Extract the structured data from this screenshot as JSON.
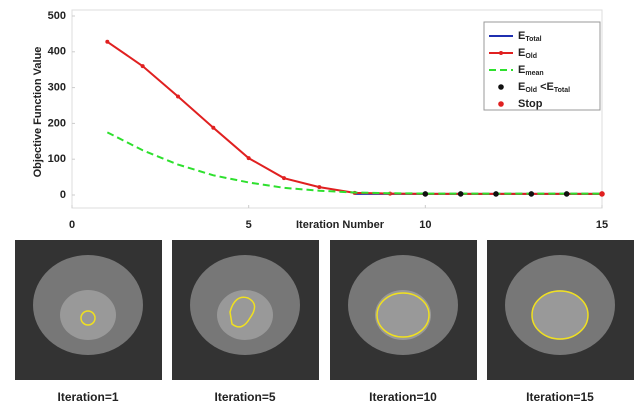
{
  "chart_data": {
    "type": "line",
    "x_label": "Iteration Number",
    "y_label": "Objective Function Value",
    "x": [
      1,
      2,
      3,
      4,
      5,
      6,
      7,
      8,
      9,
      10,
      11,
      12,
      13,
      14,
      15
    ],
    "series": [
      {
        "name": [
          "E",
          "Total"
        ],
        "color": "#1f2fb0",
        "style": "solid",
        "values": [
          null,
          null,
          null,
          null,
          null,
          null,
          null,
          3,
          3,
          3,
          3,
          3,
          3,
          3,
          3
        ]
      },
      {
        "name": [
          "E",
          "Old"
        ],
        "color": "#e02020",
        "style": "marked",
        "values": [
          428,
          360,
          275,
          188,
          103,
          47,
          22,
          6,
          4,
          3,
          3,
          3,
          3,
          3,
          3
        ]
      },
      {
        "name": [
          "E",
          "mean"
        ],
        "color": "#2ee02e",
        "style": "dashed",
        "values": [
          175,
          125,
          85,
          55,
          35,
          20,
          12,
          7,
          5,
          4,
          4,
          4,
          4,
          4,
          4
        ]
      },
      {
        "name": [
          "E",
          "Old",
          " <E",
          "Total"
        ],
        "color": "#111111",
        "style": "dots",
        "values": [
          null,
          null,
          null,
          null,
          null,
          null,
          null,
          null,
          null,
          3,
          3,
          3,
          3,
          3,
          null
        ]
      },
      {
        "name": [
          "Stop"
        ],
        "color": "#e02020",
        "style": "dots",
        "values": [
          null,
          null,
          null,
          null,
          null,
          null,
          null,
          null,
          null,
          null,
          null,
          null,
          null,
          null,
          3
        ]
      }
    ],
    "xlim": [
      0,
      15
    ],
    "xticks": [
      0,
      5,
      10,
      15
    ],
    "ylim": [
      -20,
      500
    ],
    "yticks": [
      0,
      100,
      200,
      300,
      400,
      500
    ],
    "legend": "top-right"
  },
  "images": [
    {
      "caption": "Iteration=1"
    },
    {
      "caption": "Iteration=5"
    },
    {
      "caption": "Iteration=10"
    },
    {
      "caption": "Iteration=15"
    }
  ]
}
